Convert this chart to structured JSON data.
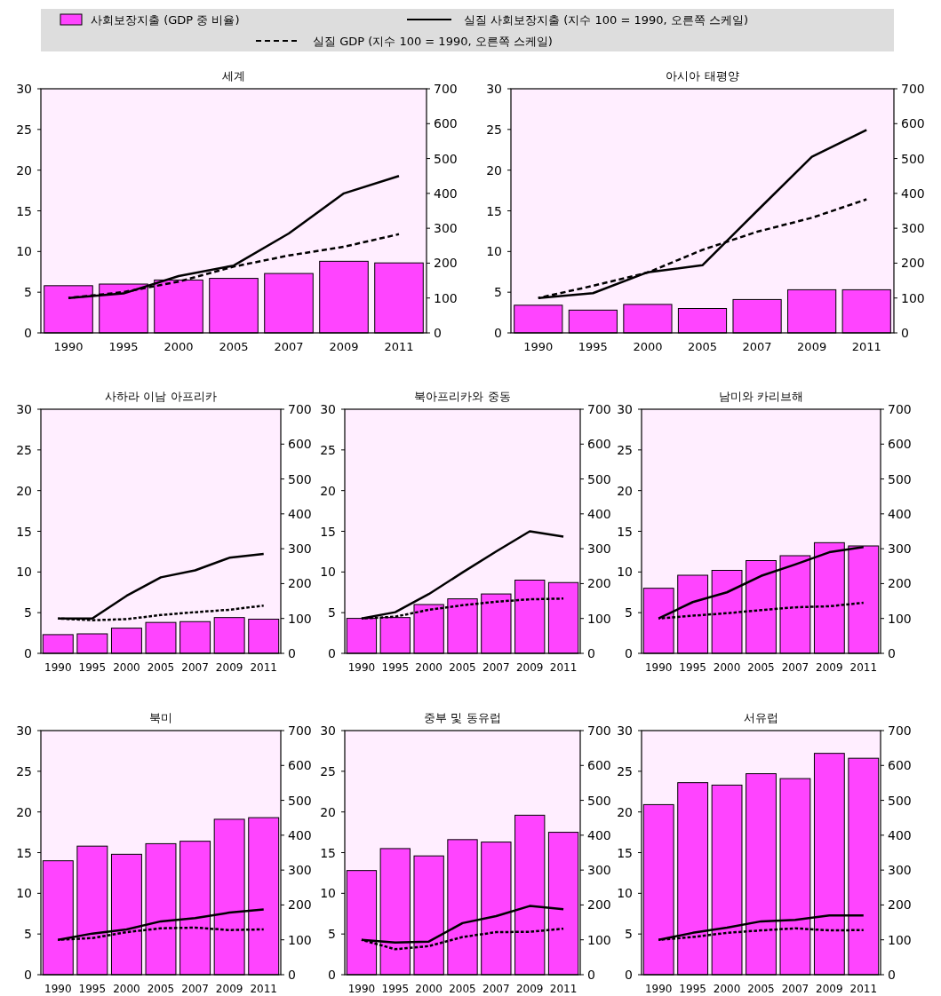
{
  "chart_data": [
    {
      "type": "bar",
      "title": "세계",
      "legend": "top",
      "categories": [
        "1990",
        "1995",
        "2000",
        "2005",
        "2007",
        "2009",
        "2011"
      ],
      "ylim": [
        0,
        30
      ],
      "yticks": [
        0,
        5,
        10,
        15,
        20,
        25,
        30
      ],
      "y2lim": [
        0,
        700
      ],
      "y2ticks": [
        0,
        100,
        200,
        300,
        400,
        500,
        600,
        700
      ],
      "series": [
        {
          "name": "사회보장지출 (GDP 중 비율)",
          "color": "#ff44ff",
          "values": [
            5.8,
            6.0,
            6.5,
            6.7,
            7.3,
            8.8,
            8.6
          ]
        },
        {
          "name": "실질 사회보장지출 (지수 100 = 1990, 오른쪽 스케일)",
          "type": "line",
          "axis": "y2",
          "color": "#000000",
          "line_style": "solid",
          "values": [
            100,
            113,
            163,
            193,
            285,
            400,
            450
          ]
        },
        {
          "name": "실질 GDP (지수 100 = 1990, 오른쪽 스케일)",
          "type": "line",
          "axis": "y2",
          "color": "#000000",
          "line_style": "dashed",
          "values": [
            100,
            117,
            147,
            190,
            222,
            247,
            283
          ]
        }
      ]
    },
    {
      "type": "bar",
      "title": "아시아 태평양",
      "categories": [
        "1990",
        "1995",
        "2000",
        "2005",
        "2007",
        "2009",
        "2011"
      ],
      "ylim": [
        0,
        30
      ],
      "yticks": [
        0,
        5,
        10,
        15,
        20,
        25,
        30
      ],
      "y2lim": [
        0,
        700
      ],
      "y2ticks": [
        0,
        100,
        200,
        300,
        400,
        500,
        600,
        700
      ],
      "series": [
        {
          "color": "#ff44ff",
          "values": [
            3.4,
            2.8,
            3.5,
            3.0,
            4.1,
            5.3,
            5.3
          ]
        },
        {
          "type": "line",
          "axis": "y2",
          "color": "#000000",
          "line_style": "solid",
          "values": [
            100,
            114,
            174,
            194,
            350,
            505,
            582
          ]
        },
        {
          "type": "line",
          "axis": "y2",
          "color": "#000000",
          "line_style": "dashed",
          "values": [
            100,
            135,
            173,
            238,
            290,
            330,
            383
          ]
        }
      ]
    },
    {
      "type": "bar",
      "title": "사하라 이남 아프리카",
      "categories": [
        "1990",
        "1995",
        "2000",
        "2005",
        "2007",
        "2009",
        "2011"
      ],
      "ylim": [
        0,
        30
      ],
      "yticks": [
        0,
        5,
        10,
        15,
        20,
        25,
        30
      ],
      "y2lim": [
        0,
        700
      ],
      "y2ticks": [
        0,
        100,
        200,
        300,
        400,
        500,
        600,
        700
      ],
      "series": [
        {
          "color": "#ff44ff",
          "values": [
            2.3,
            2.4,
            3.1,
            3.8,
            3.9,
            4.4,
            4.2
          ]
        },
        {
          "type": "line",
          "axis": "y2",
          "color": "#000000",
          "line_style": "solid",
          "values": [
            100,
            100,
            165,
            218,
            238,
            274,
            285
          ]
        },
        {
          "type": "line",
          "axis": "y2",
          "color": "#000000",
          "line_style": "dashed",
          "values": [
            100,
            95,
            98,
            110,
            118,
            125,
            137
          ]
        }
      ]
    },
    {
      "type": "bar",
      "title": "북아프리카와 중동",
      "categories": [
        "1990",
        "1995",
        "2000",
        "2005",
        "2007",
        "2009",
        "2011"
      ],
      "ylim": [
        0,
        30
      ],
      "yticks": [
        0,
        5,
        10,
        15,
        20,
        25,
        30
      ],
      "y2lim": [
        0,
        700
      ],
      "y2ticks": [
        0,
        100,
        200,
        300,
        400,
        500,
        600,
        700
      ],
      "series": [
        {
          "color": "#ff44ff",
          "values": [
            4.3,
            4.4,
            6.0,
            6.7,
            7.3,
            9.0,
            8.7
          ]
        },
        {
          "type": "line",
          "axis": "y2",
          "color": "#000000",
          "line_style": "solid",
          "values": [
            100,
            118,
            170,
            232,
            292,
            350,
            335
          ]
        },
        {
          "type": "line",
          "axis": "y2",
          "color": "#000000",
          "line_style": "dashed",
          "values": [
            100,
            105,
            125,
            138,
            148,
            155,
            157
          ]
        }
      ]
    },
    {
      "type": "bar",
      "title": "남미와 카리브해",
      "categories": [
        "1990",
        "1995",
        "2000",
        "2005",
        "2007",
        "2009",
        "2011"
      ],
      "ylim": [
        0,
        30
      ],
      "yticks": [
        0,
        5,
        10,
        15,
        20,
        25,
        30
      ],
      "y2lim": [
        0,
        700
      ],
      "y2ticks": [
        0,
        100,
        200,
        300,
        400,
        500,
        600,
        700
      ],
      "series": [
        {
          "color": "#ff44ff",
          "values": [
            8.0,
            9.6,
            10.2,
            11.4,
            12.0,
            13.6,
            13.2
          ]
        },
        {
          "type": "line",
          "axis": "y2",
          "color": "#000000",
          "line_style": "solid",
          "values": [
            100,
            147,
            175,
            222,
            255,
            290,
            305
          ]
        },
        {
          "type": "line",
          "axis": "y2",
          "color": "#000000",
          "line_style": "dashed",
          "values": [
            100,
            108,
            115,
            124,
            132,
            135,
            145
          ]
        }
      ]
    },
    {
      "type": "bar",
      "title": "북미",
      "categories": [
        "1990",
        "1995",
        "2000",
        "2005",
        "2007",
        "2009",
        "2011"
      ],
      "ylim": [
        0,
        30
      ],
      "yticks": [
        0,
        5,
        10,
        15,
        20,
        25,
        30
      ],
      "y2lim": [
        0,
        700
      ],
      "y2ticks": [
        0,
        100,
        200,
        300,
        400,
        500,
        600,
        700
      ],
      "series": [
        {
          "color": "#ff44ff",
          "values": [
            14.0,
            15.8,
            14.8,
            16.1,
            16.4,
            19.1,
            19.3
          ]
        },
        {
          "type": "line",
          "axis": "y2",
          "color": "#000000",
          "line_style": "solid",
          "values": [
            100,
            118,
            130,
            153,
            162,
            178,
            187
          ]
        },
        {
          "type": "line",
          "axis": "y2",
          "color": "#000000",
          "line_style": "dashed",
          "values": [
            100,
            105,
            122,
            133,
            135,
            128,
            130
          ]
        }
      ]
    },
    {
      "type": "bar",
      "title": "중부 및 동유럽",
      "categories": [
        "1990",
        "1995",
        "2000",
        "2005",
        "2007",
        "2009",
        "2011"
      ],
      "ylim": [
        0,
        30
      ],
      "yticks": [
        0,
        5,
        10,
        15,
        20,
        25,
        30
      ],
      "y2lim": [
        0,
        700
      ],
      "y2ticks": [
        0,
        100,
        200,
        300,
        400,
        500,
        600,
        700
      ],
      "series": [
        {
          "color": "#ff44ff",
          "values": [
            12.8,
            15.5,
            14.6,
            16.6,
            16.3,
            19.6,
            17.5
          ]
        },
        {
          "type": "line",
          "axis": "y2",
          "color": "#000000",
          "line_style": "solid",
          "values": [
            100,
            92,
            95,
            148,
            168,
            197,
            188
          ]
        },
        {
          "type": "line",
          "axis": "y2",
          "color": "#000000",
          "line_style": "dashed",
          "values": [
            100,
            73,
            82,
            108,
            122,
            123,
            132
          ]
        }
      ]
    },
    {
      "type": "bar",
      "title": "서유럽",
      "categories": [
        "1990",
        "1995",
        "2000",
        "2005",
        "2007",
        "2009",
        "2011"
      ],
      "ylim": [
        0,
        30
      ],
      "yticks": [
        0,
        5,
        10,
        15,
        20,
        25,
        30
      ],
      "y2lim": [
        0,
        700
      ],
      "y2ticks": [
        0,
        100,
        200,
        300,
        400,
        500,
        600,
        700
      ],
      "series": [
        {
          "color": "#ff44ff",
          "values": [
            20.9,
            23.6,
            23.3,
            24.7,
            24.1,
            27.2,
            26.6
          ]
        },
        {
          "type": "line",
          "axis": "y2",
          "color": "#000000",
          "line_style": "solid",
          "values": [
            100,
            120,
            135,
            153,
            157,
            170,
            170
          ]
        },
        {
          "type": "line",
          "axis": "y2",
          "color": "#000000",
          "line_style": "dashed",
          "values": [
            100,
            108,
            120,
            127,
            133,
            127,
            128
          ]
        }
      ]
    }
  ]
}
